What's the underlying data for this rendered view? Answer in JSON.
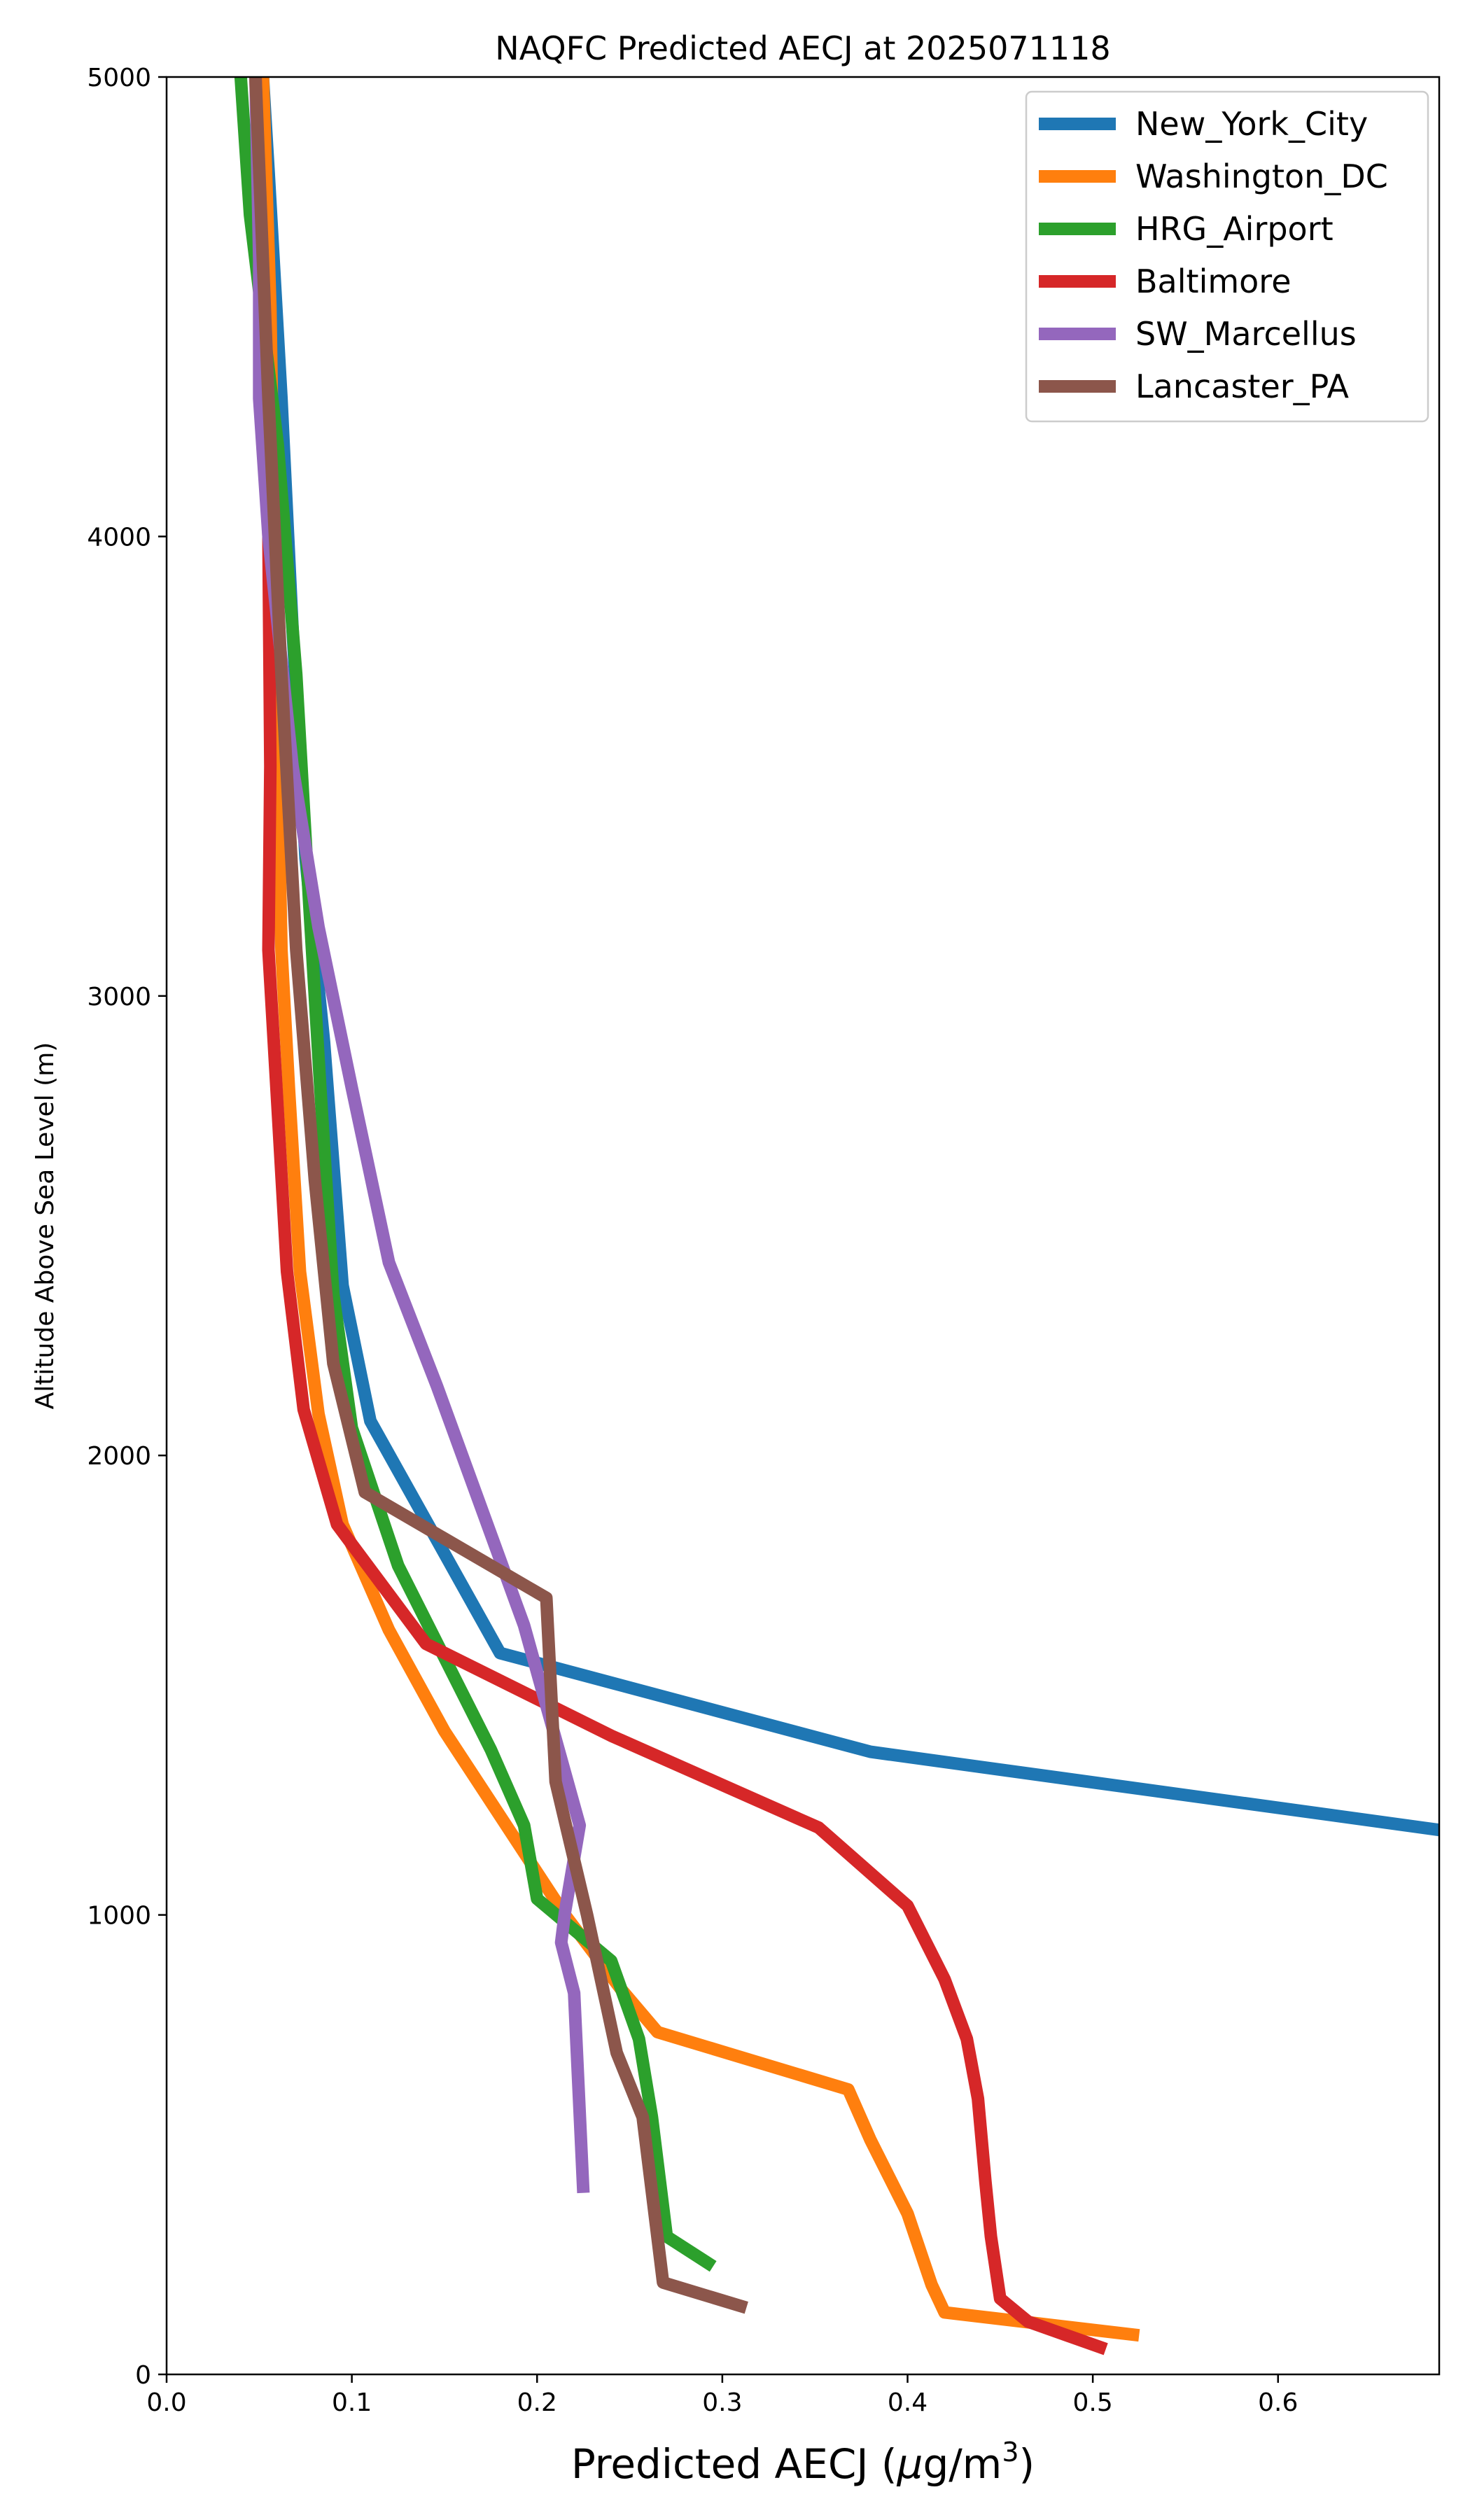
{
  "chart_data": {
    "type": "line",
    "title": "NAQFC Predicted AECJ at 2025071118",
    "xlabel": "Predicted AECJ (",
    "xlabel_mu": "μ",
    "xlabel_unit": "g/m",
    "xlabel_sup": "3",
    "xlabel_close": ")",
    "ylabel": "Altitude Above Sea Level (m)",
    "xlim": [
      0,
      0.687
    ],
    "ylim": [
      0,
      5000
    ],
    "xticks": [
      0.0,
      0.1,
      0.2,
      0.3,
      0.4,
      0.5,
      0.6
    ],
    "xtick_labels": [
      "0.0",
      "0.1",
      "0.2",
      "0.3",
      "0.4",
      "0.5",
      "0.6"
    ],
    "yticks": [
      0,
      1000,
      2000,
      3000,
      4000,
      5000
    ],
    "ytick_labels": [
      "0",
      "1000",
      "2000",
      "3000",
      "4000",
      "5000"
    ],
    "grid": false,
    "legend_position": "top-right",
    "series": [
      {
        "name": "New_York_City",
        "color": "#1f77b4",
        "points": [
          [
            0.687,
            1185
          ],
          [
            0.38,
            1355
          ],
          [
            0.18,
            1570
          ],
          [
            0.11,
            2075
          ],
          [
            0.095,
            2370
          ],
          [
            0.085,
            2900
          ],
          [
            0.075,
            3300
          ],
          [
            0.068,
            3800
          ],
          [
            0.062,
            4300
          ],
          [
            0.055,
            4800
          ],
          [
            0.052,
            5000
          ]
        ]
      },
      {
        "name": "Washington_DC",
        "color": "#ff7f0e",
        "points": [
          [
            0.525,
            85
          ],
          [
            0.42,
            135
          ],
          [
            0.413,
            195
          ],
          [
            0.4,
            350
          ],
          [
            0.38,
            510
          ],
          [
            0.368,
            620
          ],
          [
            0.265,
            745
          ],
          [
            0.245,
            840
          ],
          [
            0.215,
            1000
          ],
          [
            0.15,
            1400
          ],
          [
            0.12,
            1620
          ],
          [
            0.095,
            1850
          ],
          [
            0.082,
            2090
          ],
          [
            0.072,
            2400
          ],
          [
            0.066,
            2800
          ],
          [
            0.062,
            3100
          ],
          [
            0.06,
            3500
          ],
          [
            0.058,
            4000
          ],
          [
            0.056,
            4500
          ],
          [
            0.052,
            5000
          ]
        ]
      },
      {
        "name": "HRG_Airport",
        "color": "#2ca02c",
        "points": [
          [
            0.295,
            235
          ],
          [
            0.27,
            300
          ],
          [
            0.262,
            560
          ],
          [
            0.255,
            730
          ],
          [
            0.24,
            900
          ],
          [
            0.2,
            1035
          ],
          [
            0.193,
            1195
          ],
          [
            0.175,
            1360
          ],
          [
            0.125,
            1760
          ],
          [
            0.1,
            2060
          ],
          [
            0.09,
            2350
          ],
          [
            0.083,
            2800
          ],
          [
            0.077,
            3200
          ],
          [
            0.07,
            3700
          ],
          [
            0.06,
            4200
          ],
          [
            0.045,
            4700
          ],
          [
            0.04,
            5000
          ]
        ]
      },
      {
        "name": "Baltimore",
        "color": "#d62728",
        "points": [
          [
            0.507,
            55
          ],
          [
            0.465,
            115
          ],
          [
            0.45,
            165
          ],
          [
            0.445,
            300
          ],
          [
            0.442,
            420
          ],
          [
            0.438,
            600
          ],
          [
            0.432,
            730
          ],
          [
            0.42,
            860
          ],
          [
            0.4,
            1020
          ],
          [
            0.352,
            1190
          ],
          [
            0.24,
            1390
          ],
          [
            0.14,
            1590
          ],
          [
            0.092,
            1850
          ],
          [
            0.074,
            2100
          ],
          [
            0.065,
            2400
          ],
          [
            0.06,
            2750
          ],
          [
            0.055,
            3100
          ],
          [
            0.056,
            3500
          ],
          [
            0.055,
            4000
          ],
          [
            0.052,
            4500
          ],
          [
            0.048,
            5000
          ]
        ]
      },
      {
        "name": "SW_Marcellus",
        "color": "#9467bd",
        "points": [
          [
            0.225,
            395
          ],
          [
            0.22,
            830
          ],
          [
            0.213,
            940
          ],
          [
            0.215,
            1005
          ],
          [
            0.223,
            1195
          ],
          [
            0.193,
            1630
          ],
          [
            0.146,
            2150
          ],
          [
            0.12,
            2420
          ],
          [
            0.1,
            2800
          ],
          [
            0.082,
            3150
          ],
          [
            0.068,
            3500
          ],
          [
            0.055,
            4000
          ],
          [
            0.05,
            4300
          ],
          [
            0.05,
            4600
          ],
          [
            0.048,
            5000
          ]
        ]
      },
      {
        "name": "Lancaster_PA",
        "color": "#8c564b",
        "points": [
          [
            0.313,
            145
          ],
          [
            0.268,
            200
          ],
          [
            0.257,
            560
          ],
          [
            0.243,
            700
          ],
          [
            0.227,
            1000
          ],
          [
            0.21,
            1290
          ],
          [
            0.205,
            1690
          ],
          [
            0.107,
            1920
          ],
          [
            0.09,
            2200
          ],
          [
            0.08,
            2600
          ],
          [
            0.07,
            3100
          ],
          [
            0.062,
            3700
          ],
          [
            0.055,
            4300
          ],
          [
            0.05,
            4800
          ],
          [
            0.048,
            5000
          ]
        ]
      }
    ]
  }
}
